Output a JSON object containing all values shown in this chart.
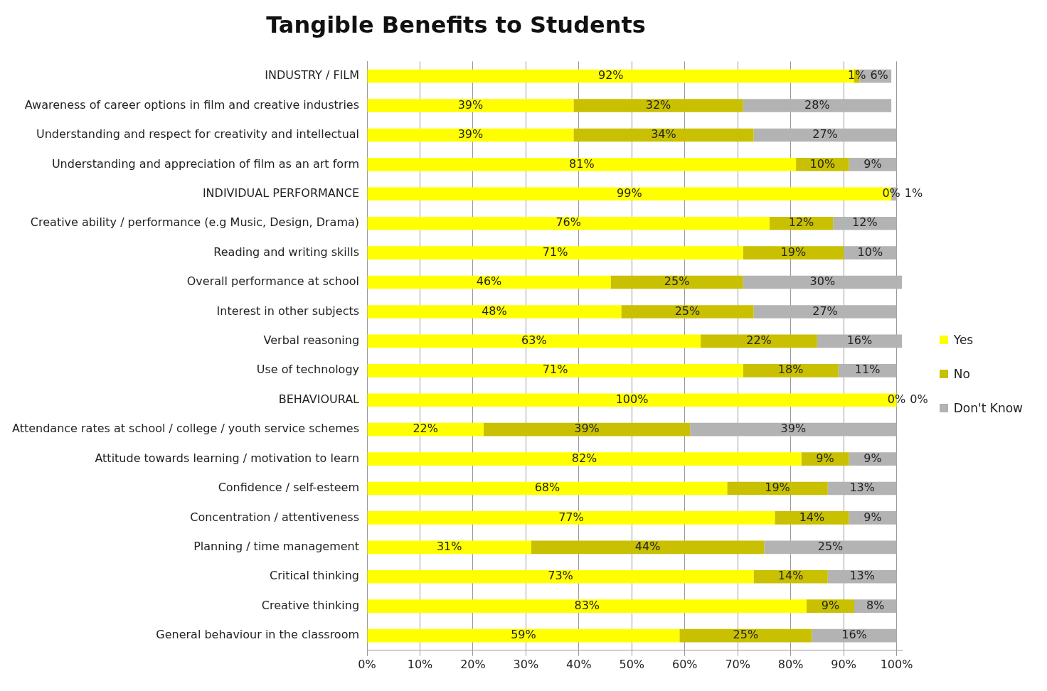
{
  "chart_data": {
    "type": "bar",
    "orientation": "horizontal",
    "stacked": true,
    "title": "Tangible Benefits to Students",
    "categories": [
      "INDUSTRY / FILM",
      "Awareness of career options in film and creative industries",
      "Understanding and respect for creativity and intellectual",
      "Understanding and appreciation of film as an art form",
      "INDIVIDUAL PERFORMANCE",
      "Creative ability / performance (e.g Music, Design, Drama)",
      "Reading and writing skills",
      "Overall performance at school",
      "Interest in other subjects",
      "Verbal reasoning",
      "Use of technology",
      "BEHAVIOURAL",
      "Attendance rates at school / college / youth service schemes",
      "Attitude towards learning / motivation to learn",
      "Confidence / self-esteem",
      "Concentration / attentiveness",
      "Planning / time management",
      "Critical thinking",
      "Creative thinking",
      "General behaviour in the classroom"
    ],
    "series": [
      {
        "name": "Yes",
        "color": "#ffff00",
        "values": [
          92,
          39,
          39,
          81,
          99,
          76,
          71,
          46,
          48,
          63,
          71,
          100,
          22,
          82,
          68,
          77,
          31,
          73,
          83,
          59
        ],
        "value_labels": [
          "92%",
          "39%",
          "39%",
          "81%",
          "99%",
          "76%",
          "71%",
          "46%",
          "48%",
          "63%",
          "71%",
          "100%",
          "22%",
          "82%",
          "68%",
          "77%",
          "31%",
          "73%",
          "83%",
          "59%"
        ]
      },
      {
        "name": "No",
        "color": "#c8c000",
        "values": [
          1,
          32,
          34,
          10,
          0,
          12,
          19,
          25,
          25,
          22,
          18,
          0,
          39,
          9,
          19,
          14,
          44,
          14,
          9,
          25
        ],
        "value_labels": [
          "1%",
          "32%",
          "34%",
          "10%",
          "0%",
          "12%",
          "19%",
          "25%",
          "25%",
          "22%",
          "18%",
          "0%",
          "39%",
          "9%",
          "19%",
          "14%",
          "44%",
          "14%",
          "9%",
          "25%"
        ]
      },
      {
        "name": "Don't Know",
        "color": "#b3b3b3",
        "values": [
          6,
          28,
          27,
          9,
          1,
          12,
          10,
          30,
          27,
          16,
          11,
          0,
          39,
          9,
          13,
          9,
          25,
          13,
          8,
          16
        ],
        "value_labels": [
          "6%",
          "28%",
          "27%",
          "9%",
          "1%",
          "12%",
          "10%",
          "30%",
          "27%",
          "16%",
          "11%",
          "0%",
          "39%",
          "9%",
          "13%",
          "9%",
          "25%",
          "13%",
          "8%",
          "16%"
        ]
      }
    ],
    "xlim": [
      0,
      101
    ],
    "xticks": [
      {
        "value": 0,
        "label": "0%"
      },
      {
        "value": 10,
        "label": "10%"
      },
      {
        "value": 20,
        "label": "20%"
      },
      {
        "value": 30,
        "label": "30%"
      },
      {
        "value": 40,
        "label": "40%"
      },
      {
        "value": 50,
        "label": "50%"
      },
      {
        "value": 60,
        "label": "60%"
      },
      {
        "value": 70,
        "label": "70%"
      },
      {
        "value": 80,
        "label": "80%"
      },
      {
        "value": 90,
        "label": "90%"
      },
      {
        "value": 100,
        "label": "100%"
      }
    ],
    "grid": "x",
    "legend": "right"
  }
}
